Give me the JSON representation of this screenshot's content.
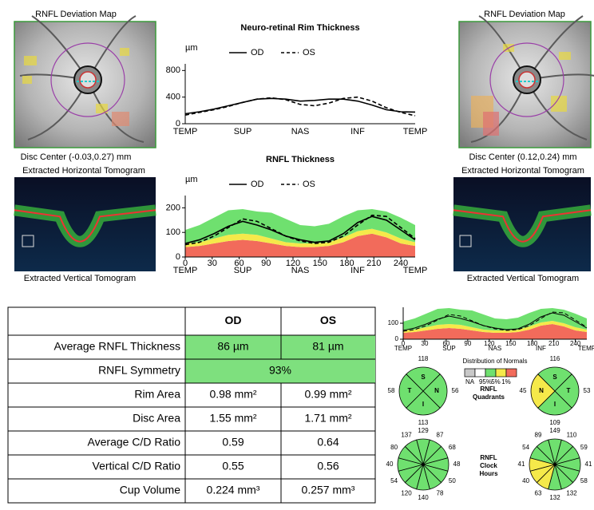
{
  "left_eye": {
    "map_title": "RNFL Deviation Map",
    "disc_center": "Disc Center (-0.03,0.27) mm",
    "horizontal": "Extracted Horizontal Tomogram",
    "vertical": "Extracted Vertical Tomogram"
  },
  "right_eye": {
    "map_title": "RNFL Deviation Map",
    "disc_center": "Disc Center (0.12,0.24) mm",
    "horizontal": "Extracted Horizontal Tomogram",
    "vertical": "Extracted Vertical Tomogram"
  },
  "chart_data": [
    {
      "type": "line",
      "title": "Neuro-retinal Rim Thickness",
      "y_unit": "µm",
      "x": [
        0,
        16,
        32,
        48,
        64,
        80,
        96,
        112,
        128,
        144,
        160,
        176,
        192,
        208,
        224,
        240,
        256
      ],
      "xlim": [
        0,
        256
      ],
      "ylim": [
        0,
        900
      ],
      "yticks": [
        0,
        400,
        800
      ],
      "sector_labels": [
        "TEMP",
        "SUP",
        "NAS",
        "INF",
        "TEMP"
      ],
      "series": [
        {
          "name": "OD",
          "color": "#000000",
          "dash": "solid",
          "values": [
            150,
            180,
            220,
            270,
            320,
            370,
            380,
            370,
            340,
            350,
            370,
            370,
            340,
            280,
            210,
            180,
            175
          ]
        },
        {
          "name": "OS",
          "color": "#000000",
          "dash": "dashed",
          "values": [
            130,
            170,
            210,
            260,
            320,
            370,
            390,
            360,
            290,
            270,
            310,
            380,
            400,
            340,
            240,
            170,
            120
          ]
        }
      ]
    },
    {
      "type": "line",
      "title": "RNFL Thickness",
      "y_unit": "µm",
      "x": [
        0,
        16,
        32,
        48,
        64,
        80,
        96,
        112,
        128,
        144,
        160,
        176,
        192,
        208,
        224,
        240,
        256
      ],
      "xlim": [
        0,
        256
      ],
      "ylim": [
        0,
        250
      ],
      "yticks": [
        0,
        100,
        200
      ],
      "xticks": [
        0,
        30,
        60,
        90,
        120,
        150,
        180,
        210,
        240
      ],
      "sector_labels": [
        "TEMP",
        "SUP",
        "NAS",
        "INF",
        "TEMP"
      ],
      "bands": [
        {
          "color": "#f26b5b",
          "values": [
            40,
            45,
            55,
            65,
            70,
            65,
            55,
            45,
            40,
            40,
            45,
            60,
            85,
            95,
            80,
            55,
            45
          ]
        },
        {
          "color": "#f5e94a",
          "values": [
            55,
            60,
            75,
            90,
            95,
            90,
            75,
            60,
            55,
            55,
            60,
            80,
            105,
            115,
            100,
            75,
            60
          ]
        },
        {
          "color": "#6fe06f",
          "values": [
            110,
            130,
            160,
            190,
            195,
            185,
            180,
            155,
            130,
            125,
            135,
            165,
            190,
            195,
            185,
            160,
            130
          ]
        }
      ],
      "series": [
        {
          "name": "OD",
          "color": "#000000",
          "dash": "solid",
          "values": [
            55,
            70,
            95,
            125,
            145,
            130,
            110,
            85,
            70,
            60,
            65,
            95,
            140,
            165,
            150,
            110,
            70
          ]
        },
        {
          "name": "OS",
          "color": "#000000",
          "dash": "dashed",
          "values": [
            50,
            60,
            85,
            120,
            155,
            145,
            115,
            85,
            65,
            55,
            60,
            85,
            130,
            170,
            165,
            120,
            75
          ]
        }
      ]
    },
    {
      "type": "line",
      "x": [
        0,
        16,
        32,
        48,
        64,
        80,
        96,
        112,
        128,
        144,
        160,
        176,
        192,
        208,
        224,
        240,
        256
      ],
      "xlim": [
        0,
        256
      ],
      "ylim": [
        0,
        200
      ],
      "yticks": [
        0,
        100
      ],
      "xticks": [
        0,
        30,
        60,
        90,
        120,
        150,
        180,
        210,
        240
      ],
      "sector_labels": [
        "TEMP",
        "SUP",
        "NAS",
        "INF",
        "TEMP"
      ],
      "bands": [
        {
          "color": "#f26b5b",
          "values": [
            40,
            45,
            55,
            65,
            70,
            65,
            55,
            45,
            40,
            40,
            45,
            60,
            85,
            95,
            80,
            55,
            45
          ]
        },
        {
          "color": "#f5e94a",
          "values": [
            55,
            60,
            75,
            90,
            95,
            90,
            75,
            60,
            55,
            55,
            60,
            80,
            105,
            115,
            100,
            75,
            60
          ]
        },
        {
          "color": "#6fe06f",
          "values": [
            110,
            130,
            160,
            190,
            195,
            185,
            180,
            155,
            130,
            125,
            135,
            165,
            190,
            195,
            185,
            160,
            130
          ]
        }
      ],
      "series": [
        {
          "color": "#000000",
          "dash": "solid",
          "values": [
            55,
            70,
            95,
            125,
            145,
            130,
            110,
            85,
            70,
            60,
            65,
            95,
            140,
            165,
            150,
            110,
            70
          ]
        },
        {
          "color": "#000000",
          "dash": "dashed",
          "values": [
            50,
            60,
            85,
            120,
            155,
            145,
            115,
            85,
            65,
            55,
            60,
            85,
            130,
            170,
            165,
            120,
            75
          ]
        }
      ]
    }
  ],
  "table": {
    "header": [
      "OD",
      "OS"
    ],
    "rows": [
      {
        "label": "Average RNFL Thickness",
        "cells": [
          "86 µm",
          "81 µm"
        ],
        "color": "#7ee07e"
      },
      {
        "label": "RNFL Symmetry",
        "cells": [
          "93%"
        ],
        "color": "#7ee07e"
      },
      {
        "label": "Rim Area",
        "cells": [
          "0.98 mm²",
          "0.99 mm²"
        ]
      },
      {
        "label": "Disc Area",
        "cells": [
          "1.55 mm²",
          "1.71 mm²"
        ]
      },
      {
        "label": "Average C/D Ratio",
        "cells": [
          "0.59",
          "0.64"
        ]
      },
      {
        "label": "Vertical C/D Ratio",
        "cells": [
          "0.55",
          "0.56"
        ]
      },
      {
        "label": "Cup Volume",
        "cells": [
          "0.224 mm³",
          "0.257 mm³"
        ]
      }
    ]
  },
  "normals_legend": {
    "title": "Distribution of Normals",
    "boxes": [
      "#c8c8c8",
      "#ffffff",
      "#6fe06f",
      "#f5e94a",
      "#f26b5b"
    ],
    "labels": [
      "NA",
      "95%",
      "5%",
      "1%"
    ]
  },
  "quadrants": {
    "label": [
      "RNFL",
      "Quadrants"
    ],
    "od": [
      {
        "letter": "S",
        "value": 118,
        "color": "#6fe06f"
      },
      {
        "letter": "N",
        "value": 56,
        "color": "#6fe06f"
      },
      {
        "letter": "I",
        "value": 113,
        "color": "#6fe06f"
      },
      {
        "letter": "T",
        "value": 58,
        "color": "#6fe06f"
      }
    ],
    "os": [
      {
        "letter": "S",
        "value": 116,
        "color": "#6fe06f"
      },
      {
        "letter": "T",
        "value": 53,
        "color": "#6fe06f"
      },
      {
        "letter": "I",
        "value": 109,
        "color": "#6fe06f"
      },
      {
        "letter": "N",
        "value": 45,
        "color": "#f5e94a"
      }
    ]
  },
  "clock_hours": {
    "label": [
      "RNFL",
      "Clock",
      "Hours"
    ],
    "od": {
      "values": [
        129,
        87,
        68,
        48,
        50,
        78,
        140,
        120,
        54,
        40,
        80,
        137
      ],
      "colors": [
        "#6fe06f",
        "#6fe06f",
        "#6fe06f",
        "#6fe06f",
        "#6fe06f",
        "#6fe06f",
        "#6fe06f",
        "#6fe06f",
        "#6fe06f",
        "#6fe06f",
        "#6fe06f",
        "#6fe06f"
      ]
    },
    "os": {
      "values": [
        149,
        110,
        59,
        41,
        58,
        132,
        132,
        63,
        40,
        41,
        54,
        89
      ],
      "colors": [
        "#6fe06f",
        "#6fe06f",
        "#6fe06f",
        "#6fe06f",
        "#6fe06f",
        "#6fe06f",
        "#6fe06f",
        "#f5e94a",
        "#f5e94a",
        "#f5e94a",
        "#6fe06f",
        "#6fe06f"
      ]
    }
  }
}
